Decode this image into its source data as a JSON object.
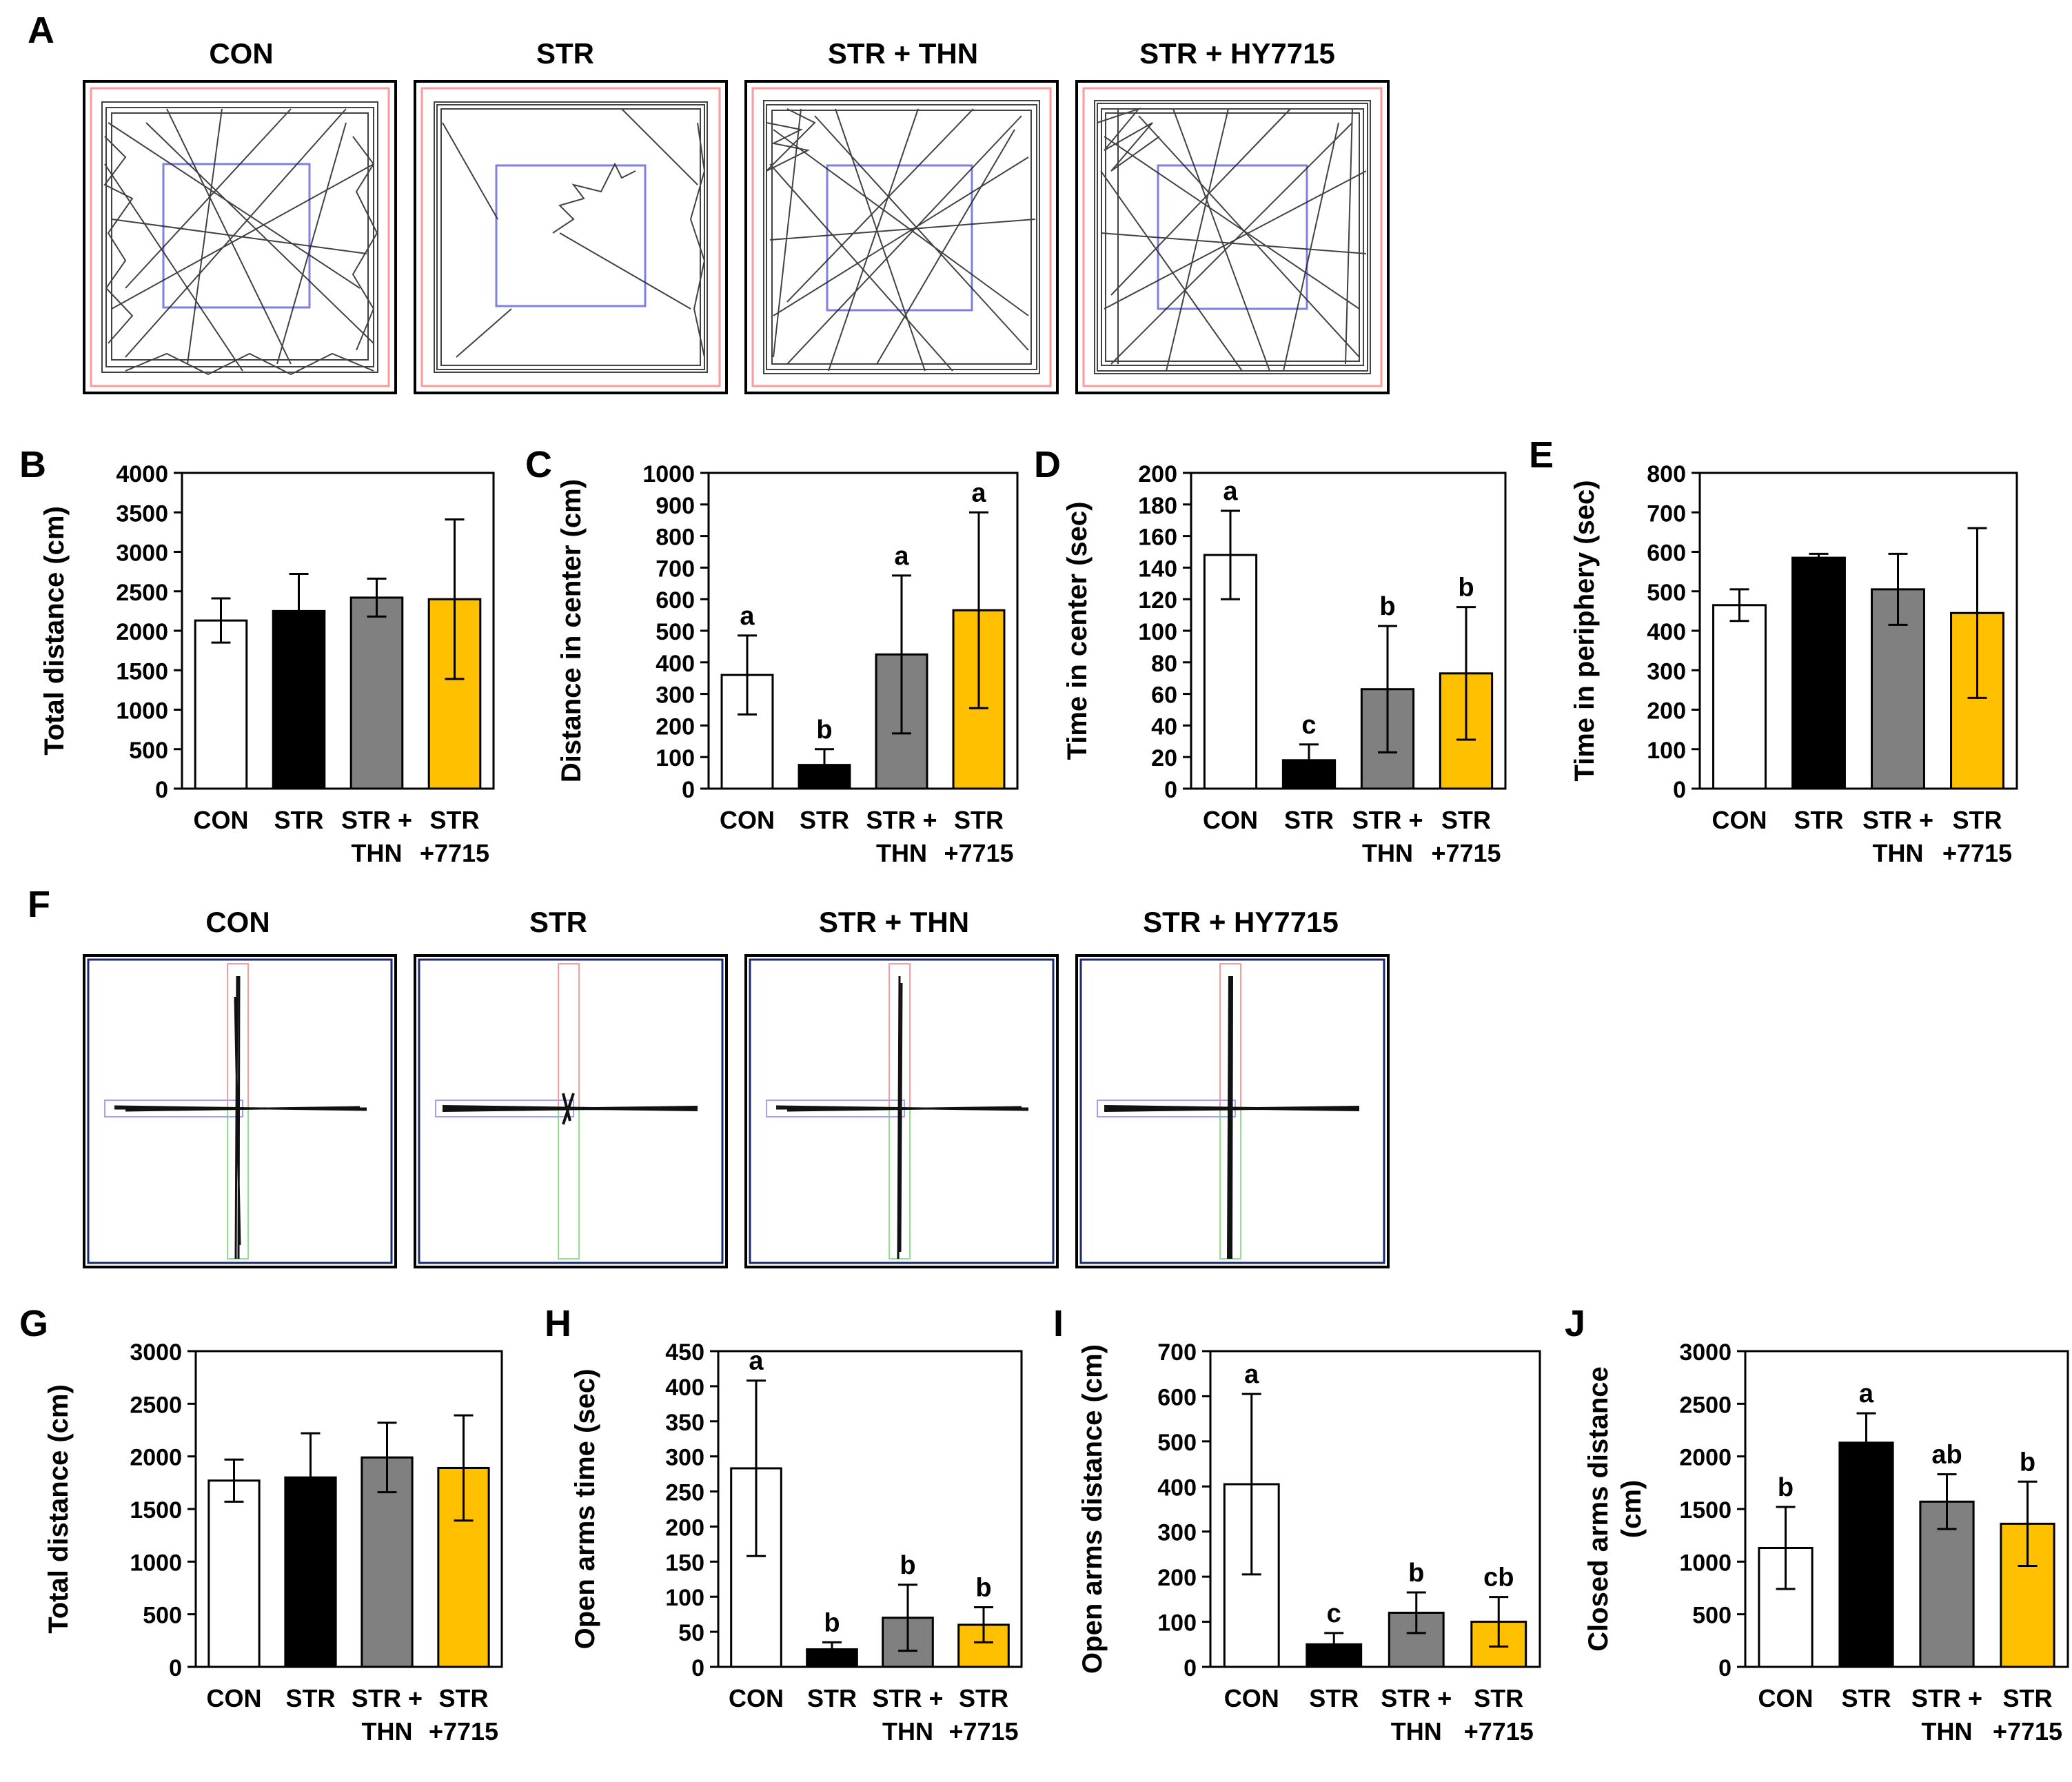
{
  "panel_letters": {
    "A": "A",
    "B": "B",
    "C": "C",
    "D": "D",
    "E": "E",
    "F": "F",
    "G": "G",
    "H": "H",
    "I": "I",
    "J": "J"
  },
  "track_titles": [
    "CON",
    "STR",
    "STR + THN",
    "STR + HY7715"
  ],
  "colors": {
    "CON": "#ffffff",
    "STR": "#000000",
    "THN": "#808080",
    "HY7715": "#ffc000",
    "axis": "#000000",
    "arena_outer": "#ff9a9a",
    "arena_center": "#8080e0",
    "closed_arm": "#ff9a9a",
    "open_arm_h": "#a0a0ff",
    "open_arm_v": "#90e090"
  },
  "chart_data": [
    {
      "id": "B",
      "type": "bar",
      "ylabel": "Total distance (cm)",
      "ylim": [
        0,
        4000
      ],
      "yticks": [
        0,
        500,
        1000,
        1500,
        2000,
        2500,
        3000,
        3500,
        4000
      ],
      "categories": [
        [
          "CON"
        ],
        [
          "STR"
        ],
        [
          "STR +",
          "THN"
        ],
        [
          "STR",
          "+7715"
        ]
      ],
      "values": [
        2130,
        2250,
        2420,
        2400
      ],
      "errors": [
        280,
        470,
        240,
        1010
      ],
      "letters": [
        "",
        "",
        "",
        ""
      ]
    },
    {
      "id": "C",
      "type": "bar",
      "ylabel": "Distance in center (cm)",
      "ylim": [
        0,
        1000
      ],
      "yticks": [
        0,
        100,
        200,
        300,
        400,
        500,
        600,
        700,
        800,
        900,
        1000
      ],
      "categories": [
        [
          "CON"
        ],
        [
          "STR"
        ],
        [
          "STR +",
          "THN"
        ],
        [
          "STR",
          "+7715"
        ]
      ],
      "values": [
        360,
        75,
        425,
        565
      ],
      "errors": [
        125,
        50,
        250,
        310
      ],
      "letters": [
        "a",
        "b",
        "a",
        "a"
      ]
    },
    {
      "id": "D",
      "type": "bar",
      "ylabel": "Time in center (sec)",
      "ylim": [
        0,
        200
      ],
      "yticks": [
        0,
        20,
        40,
        60,
        80,
        100,
        120,
        140,
        160,
        180,
        200
      ],
      "categories": [
        [
          "CON"
        ],
        [
          "STR"
        ],
        [
          "STR +",
          "THN"
        ],
        [
          "STR",
          "+7715"
        ]
      ],
      "values": [
        148,
        18,
        63,
        73
      ],
      "errors": [
        28,
        10,
        40,
        42
      ],
      "letters": [
        "a",
        "c",
        "b",
        "b"
      ]
    },
    {
      "id": "E",
      "type": "bar",
      "ylabel": "Time in periphery (sec)",
      "ylim": [
        0,
        800
      ],
      "yticks": [
        0,
        100,
        200,
        300,
        400,
        500,
        600,
        700,
        800
      ],
      "categories": [
        [
          "CON"
        ],
        [
          "STR"
        ],
        [
          "STR +",
          "THN"
        ],
        [
          "STR",
          "+7715"
        ]
      ],
      "values": [
        465,
        585,
        505,
        445
      ],
      "errors": [
        40,
        10,
        90,
        215
      ],
      "letters": [
        "",
        "",
        "",
        ""
      ]
    },
    {
      "id": "G",
      "type": "bar",
      "ylabel": "Total distance (cm)",
      "ylim": [
        0,
        3000
      ],
      "yticks": [
        0,
        500,
        1000,
        1500,
        2000,
        2500,
        3000
      ],
      "categories": [
        [
          "CON"
        ],
        [
          "STR"
        ],
        [
          "STR +",
          "THN"
        ],
        [
          "STR",
          "+7715"
        ]
      ],
      "values": [
        1770,
        1800,
        1990,
        1890
      ],
      "errors": [
        200,
        420,
        330,
        500
      ],
      "letters": [
        "",
        "",
        "",
        ""
      ]
    },
    {
      "id": "H",
      "type": "bar",
      "ylabel": "Open arms time (sec)",
      "ylim": [
        0,
        450
      ],
      "yticks": [
        0,
        50,
        100,
        150,
        200,
        250,
        300,
        350,
        400,
        450
      ],
      "categories": [
        [
          "CON"
        ],
        [
          "STR"
        ],
        [
          "STR +",
          "THN"
        ],
        [
          "STR",
          "+7715"
        ]
      ],
      "values": [
        283,
        25,
        70,
        60
      ],
      "errors": [
        125,
        10,
        47,
        25
      ],
      "letters": [
        "a",
        "b",
        "b",
        "b"
      ]
    },
    {
      "id": "I",
      "type": "bar",
      "ylabel": "Open arms distance (cm)",
      "ylim": [
        0,
        700
      ],
      "yticks": [
        0,
        100,
        200,
        300,
        400,
        500,
        600,
        700
      ],
      "categories": [
        [
          "CON"
        ],
        [
          "STR"
        ],
        [
          "STR +",
          "THN"
        ],
        [
          "STR",
          "+7715"
        ]
      ],
      "values": [
        405,
        50,
        120,
        100
      ],
      "errors": [
        200,
        25,
        45,
        55
      ],
      "letters": [
        "a",
        "c",
        "b",
        "cb"
      ]
    },
    {
      "id": "J",
      "type": "bar",
      "ylabel": [
        "Closed arms distance",
        "(cm)"
      ],
      "ylim": [
        0,
        3000
      ],
      "yticks": [
        0,
        500,
        1000,
        1500,
        2000,
        2500,
        3000
      ],
      "categories": [
        [
          "CON"
        ],
        [
          "STR"
        ],
        [
          "STR +",
          "THN"
        ],
        [
          "STR",
          "+7715"
        ]
      ],
      "values": [
        1130,
        2130,
        1570,
        1360
      ],
      "errors": [
        390,
        280,
        260,
        400
      ],
      "letters": [
        "b",
        "a",
        "ab",
        "b"
      ]
    }
  ]
}
